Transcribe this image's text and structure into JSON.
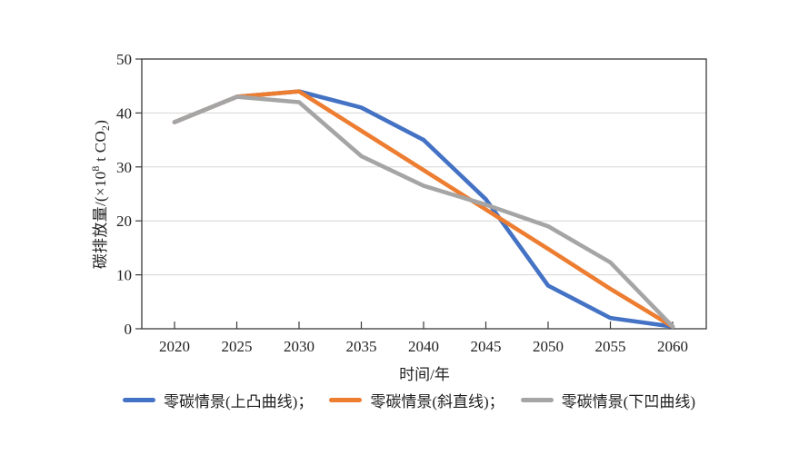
{
  "figure": {
    "y_axis_label": {
      "prefix": "碳排放量/(×10",
      "sup": "8",
      "mid": " t CO",
      "sub": "2",
      "suffix": ")"
    },
    "x_axis_label": "时间/年"
  },
  "legend": {
    "items": [
      {
        "label": "零碳情景(上凸曲线)；",
        "color": "#4472C4"
      },
      {
        "label": "零碳情景(斜直线)；",
        "color": "#ED7D31"
      },
      {
        "label": "零碳情景(下凹曲线)",
        "color": "#A5A5A5"
      }
    ]
  },
  "chart_data": {
    "type": "line",
    "title": "",
    "x": [
      2020,
      2025,
      2030,
      2035,
      2040,
      2045,
      2050,
      2055,
      2060
    ],
    "series": [
      {
        "name": "零碳情景(上凸曲线)",
        "color": "#4472C4",
        "values": [
          38.3,
          43,
          44,
          41,
          35,
          24,
          8,
          2,
          0.4
        ]
      },
      {
        "name": "零碳情景(斜直线)",
        "color": "#ED7D31",
        "values": [
          38.3,
          43,
          44,
          36.7,
          29.4,
          22.1,
          14.8,
          7.4,
          0.4
        ]
      },
      {
        "name": "零碳情景(下凹曲线)",
        "color": "#A5A5A5",
        "values": [
          38.3,
          43,
          42,
          32,
          26.5,
          23,
          19,
          12.3,
          0.4
        ]
      }
    ],
    "xlabel": "时间/年",
    "ylabel": "碳排放量/(×10⁸ t CO₂)",
    "xticks": [
      2020,
      2025,
      2030,
      2035,
      2040,
      2045,
      2050,
      2055,
      2060
    ],
    "yticks": [
      0,
      10,
      20,
      30,
      40,
      50
    ],
    "ylim": [
      0,
      50
    ],
    "grid": "horizontal",
    "legend_position": "bottom",
    "line_width": 4.6,
    "frame_color": "#3a3a3a",
    "grid_color": "#d6d6d6",
    "tick_label_size": 17
  }
}
